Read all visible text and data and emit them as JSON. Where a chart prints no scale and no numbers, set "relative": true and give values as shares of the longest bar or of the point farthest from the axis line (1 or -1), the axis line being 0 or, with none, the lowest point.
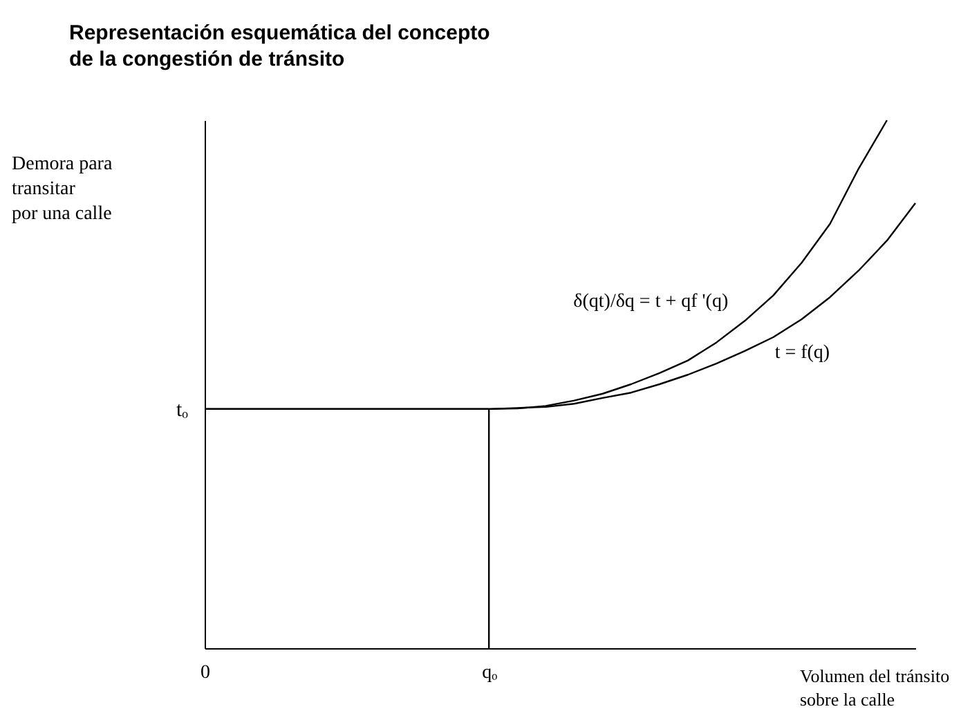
{
  "chart_data": {
    "type": "line",
    "title": "Representación esquemática del concepto\nde la congestión de tránsito",
    "xlabel": "Volumen del tránsito\nsobre la calle",
    "ylabel": "Demora para\ntransitar\npor una calle",
    "relative": true,
    "categories": [
      "0",
      null,
      null,
      null,
      null,
      null,
      null,
      null,
      null,
      null,
      "qₒ",
      null,
      null,
      null,
      null,
      null,
      null,
      null,
      null,
      null,
      null,
      null,
      null,
      null,
      null,
      null
    ],
    "ref_lines": [
      {
        "axis": "x",
        "value": "qₒ"
      },
      {
        "axis": "y",
        "value": 0.453,
        "label": "tₒ"
      }
    ],
    "series": [
      {
        "name": "δ(qt)/δq = t + qf '(q)",
        "color": "#000000",
        "values": [
          0.453,
          0.453,
          0.453,
          0.453,
          0.453,
          0.453,
          0.453,
          0.453,
          0.453,
          0.453,
          0.453,
          0.454,
          0.459,
          0.469,
          0.482,
          0.5,
          0.521,
          0.545,
          0.579,
          0.62,
          0.668,
          0.73,
          0.804,
          0.908,
          1,
          null
        ]
      },
      {
        "name": "t = f(q)",
        "color": "#000000",
        "values": [
          0.453,
          0.453,
          0.453,
          0.453,
          0.453,
          0.453,
          0.453,
          0.453,
          0.453,
          0.453,
          0.453,
          0.455,
          0.457,
          0.463,
          0.474,
          0.484,
          0.5,
          0.518,
          0.539,
          0.563,
          0.589,
          0.623,
          0.665,
          0.715,
          0.772,
          0.843
        ]
      }
    ]
  }
}
